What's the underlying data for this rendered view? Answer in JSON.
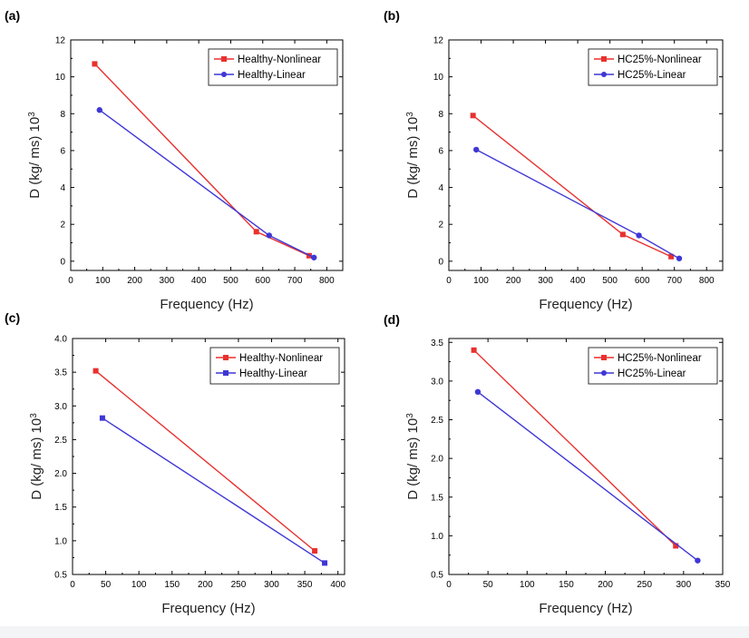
{
  "colors": {
    "nonlinear": "#e8312f",
    "linear": "#3f37d6",
    "axis": "#000000"
  },
  "chart_data": [
    {
      "panel_label": "(a)",
      "type": "line",
      "xlabel": "Frequency (Hz)",
      "ylabel": "D (kg/ ms) 10",
      "ylabel_sup": "3",
      "xlim": [
        0,
        850
      ],
      "ylim": [
        -0.5,
        12
      ],
      "xticks": [
        0,
        100,
        200,
        300,
        400,
        500,
        600,
        700,
        800
      ],
      "yticks": [
        0,
        2,
        4,
        6,
        8,
        10,
        12
      ],
      "ytick_labels": [
        "0",
        "2",
        "4",
        "6",
        "8",
        "10",
        "12"
      ],
      "legend_position": "top-right",
      "series": [
        {
          "name": "Healthy-Nonlinear",
          "color_key": "nonlinear",
          "marker": "square",
          "x": [
            75,
            580,
            745
          ],
          "y": [
            10.7,
            1.6,
            0.3
          ]
        },
        {
          "name": "Healthy-Linear",
          "color_key": "linear",
          "marker": "circle",
          "x": [
            90,
            620,
            760
          ],
          "y": [
            8.2,
            1.4,
            0.2
          ]
        }
      ]
    },
    {
      "panel_label": "(b)",
      "type": "line",
      "xlabel": "Frequency (Hz)",
      "ylabel": "D (kg/ ms) 10",
      "ylabel_sup": "3",
      "xlim": [
        0,
        850
      ],
      "ylim": [
        -0.5,
        12
      ],
      "xticks": [
        0,
        100,
        200,
        300,
        400,
        500,
        600,
        700,
        800
      ],
      "yticks": [
        0,
        2,
        4,
        6,
        8,
        10,
        12
      ],
      "ytick_labels": [
        "0",
        "2",
        "4",
        "6",
        "8",
        "10",
        "12"
      ],
      "legend_position": "top-right",
      "series": [
        {
          "name": "HC25%-Nonlinear",
          "color_key": "nonlinear",
          "marker": "square",
          "x": [
            75,
            540,
            690
          ],
          "y": [
            7.9,
            1.45,
            0.25
          ]
        },
        {
          "name": "HC25%-Linear",
          "color_key": "linear",
          "marker": "circle",
          "x": [
            85,
            590,
            715
          ],
          "y": [
            6.05,
            1.4,
            0.15
          ]
        }
      ]
    },
    {
      "panel_label": "(c)",
      "type": "line",
      "xlabel": "Frequency (Hz)",
      "ylabel": "D (kg/ ms) 10",
      "ylabel_sup": "3",
      "xlim": [
        0,
        410
      ],
      "ylim": [
        0.5,
        4.0
      ],
      "xticks": [
        0,
        50,
        100,
        150,
        200,
        250,
        300,
        350,
        400
      ],
      "yticks": [
        0.5,
        1.0,
        1.5,
        2.0,
        2.5,
        3.0,
        3.5,
        4.0
      ],
      "ytick_labels": [
        "0.5",
        "1.0",
        "1.5",
        "2.0",
        "2.5",
        "3.0",
        "3.5",
        "4.0"
      ],
      "legend_position": "top-right",
      "series": [
        {
          "name": "Healthy-Nonlinear",
          "color_key": "nonlinear",
          "marker": "square",
          "x": [
            35,
            365
          ],
          "y": [
            3.52,
            0.85
          ]
        },
        {
          "name": "Healthy-Linear",
          "color_key": "linear",
          "marker": "square",
          "x": [
            45,
            380
          ],
          "y": [
            2.82,
            0.67
          ]
        }
      ]
    },
    {
      "panel_label": "(d)",
      "type": "line",
      "xlabel": "Frequency (Hz)",
      "ylabel": "D (kg/ ms) 10",
      "ylabel_sup": "3",
      "xlim": [
        0,
        350
      ],
      "ylim": [
        0.5,
        3.55
      ],
      "xticks": [
        0,
        50,
        100,
        150,
        200,
        250,
        300,
        350
      ],
      "yticks": [
        0.5,
        1.0,
        1.5,
        2.0,
        2.5,
        3.0,
        3.5
      ],
      "ytick_labels": [
        "0.5",
        "1.0",
        "1.5",
        "2.0",
        "2.5",
        "3.0",
        "3.5"
      ],
      "legend_position": "top-right",
      "series": [
        {
          "name": "HC25%-Nonlinear",
          "color_key": "nonlinear",
          "marker": "square",
          "x": [
            32,
            290
          ],
          "y": [
            3.4,
            0.87
          ]
        },
        {
          "name": "HC25%-Linear",
          "color_key": "linear",
          "marker": "circle",
          "x": [
            37,
            318
          ],
          "y": [
            2.86,
            0.68
          ]
        }
      ]
    }
  ]
}
